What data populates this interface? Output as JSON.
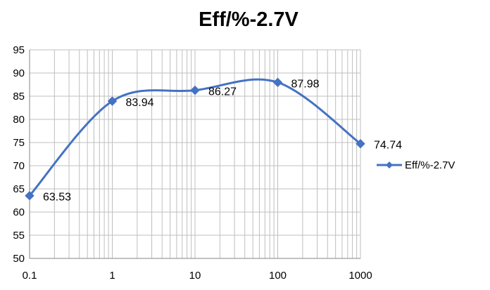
{
  "chart_data": {
    "type": "line",
    "title": "Eff/%-2.7V",
    "xlabel": "",
    "ylabel": "",
    "x_scale": "log",
    "categories": [
      "0.1",
      "1",
      "10",
      "100",
      "1000"
    ],
    "x": [
      0.1,
      1,
      10,
      100,
      1000
    ],
    "series": [
      {
        "name": "Eff/%-2.7V",
        "values": [
          63.53,
          83.94,
          86.27,
          87.98,
          74.74
        ],
        "data_labels": [
          "63.53",
          "83.94",
          "86.27",
          "87.98",
          "74.74"
        ],
        "color": "#4472C4",
        "marker": "diamond",
        "smooth": true
      }
    ],
    "ylim": [
      50,
      95
    ],
    "y_ticks": [
      "50",
      "55",
      "60",
      "65",
      "70",
      "75",
      "80",
      "85",
      "90",
      "95"
    ],
    "grid": true,
    "legend_position": "right"
  }
}
